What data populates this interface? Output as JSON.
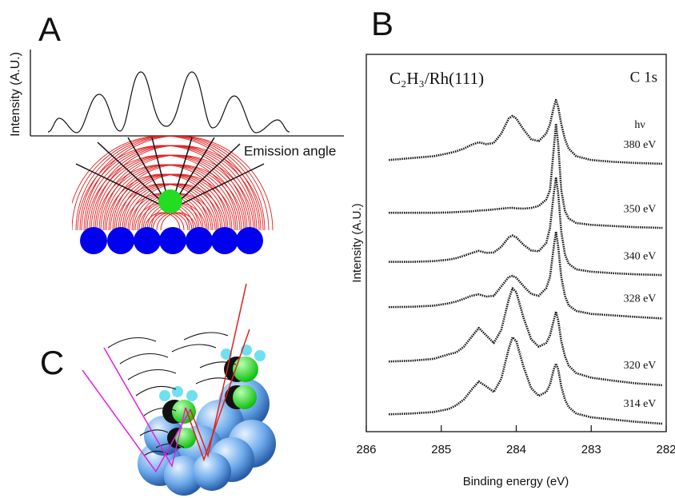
{
  "panels": {
    "a": {
      "label": "A",
      "y_label": "Intensity (A.U.)",
      "x_label": "Emission angle"
    },
    "c": {
      "label": "C"
    }
  },
  "chart_data": {
    "type": "line",
    "panel_label": "B",
    "title": "C₂H₃/Rh(111)",
    "subtitle": "C 1s",
    "legend_title": "hν",
    "x_label": "Binding energy (eV)",
    "y_label": "Intensity (A.U.)",
    "xlim": [
      286,
      282
    ],
    "xticks": [
      286,
      285,
      284,
      283,
      282
    ],
    "ylim": [
      0,
      100
    ],
    "color": "#111111",
    "x": [
      285.7,
      285.4,
      285.1,
      284.9,
      284.8,
      284.7,
      284.6,
      284.5,
      284.4,
      284.3,
      284.2,
      284.1,
      284.05,
      284.0,
      283.9,
      283.8,
      283.7,
      283.6,
      283.55,
      283.5,
      283.47,
      283.44,
      283.4,
      283.35,
      283.3,
      283.2,
      283.0,
      282.7,
      282.4,
      282.05
    ],
    "series": [
      {
        "name": "380 eV",
        "values": [
          72.0,
          72.5,
          73.0,
          73.8,
          74.3,
          75.0,
          76.0,
          76.7,
          76.2,
          76.5,
          79.0,
          83.0,
          83.7,
          83.0,
          80.0,
          77.5,
          77.0,
          79.0,
          81.5,
          86.0,
          87.9,
          86.0,
          81.5,
          77.5,
          75.0,
          73.0,
          72.0,
          71.5,
          71.2,
          71.0
        ]
      },
      {
        "name": "350 eV",
        "values": [
          58.0,
          58.0,
          58.0,
          58.1,
          58.2,
          58.3,
          58.4,
          58.6,
          58.7,
          58.9,
          59.1,
          59.3,
          59.3,
          59.2,
          59.1,
          59.3,
          59.8,
          61.5,
          64.0,
          75.0,
          81.6,
          76.0,
          64.0,
          58.5,
          56.5,
          55.3,
          54.8,
          54.5,
          54.2,
          54.0
        ]
      },
      {
        "name": "340 eV",
        "values": [
          45.0,
          45.0,
          45.2,
          45.6,
          46.0,
          46.6,
          47.3,
          47.9,
          47.4,
          47.5,
          49.0,
          51.5,
          52.0,
          51.5,
          49.5,
          48.0,
          47.8,
          50.0,
          54.0,
          63.0,
          67.4,
          63.0,
          53.0,
          47.0,
          44.5,
          43.0,
          42.4,
          42.0,
          41.7,
          41.5
        ]
      },
      {
        "name": "328 eV",
        "values": [
          33.0,
          33.1,
          33.4,
          34.0,
          34.5,
          35.2,
          36.0,
          36.4,
          35.8,
          36.0,
          38.5,
          41.0,
          41.3,
          40.8,
          38.5,
          36.5,
          36.0,
          38.0,
          41.0,
          49.0,
          53.0,
          49.0,
          41.0,
          36.0,
          33.5,
          32.0,
          31.2,
          30.8,
          30.4,
          30.0
        ]
      },
      {
        "name": "320 eV",
        "values": [
          18.6,
          18.8,
          19.3,
          20.5,
          21.0,
          22.5,
          25.0,
          27.5,
          25.5,
          23.5,
          27.0,
          35.0,
          38.0,
          37.0,
          30.0,
          24.5,
          22.5,
          23.5,
          25.5,
          29.5,
          31.8,
          29.5,
          24.0,
          20.0,
          17.5,
          15.5,
          14.3,
          13.5,
          12.8,
          12.3
        ]
      },
      {
        "name": "314 eV",
        "values": [
          4.6,
          4.8,
          5.2,
          6.0,
          7.0,
          8.5,
          11.0,
          13.3,
          12.0,
          10.5,
          14.0,
          22.0,
          25.0,
          24.0,
          17.0,
          11.5,
          9.5,
          10.5,
          12.5,
          16.5,
          18.0,
          16.5,
          12.0,
          8.5,
          6.5,
          4.8,
          3.8,
          3.2,
          2.6,
          2.1
        ]
      }
    ]
  }
}
